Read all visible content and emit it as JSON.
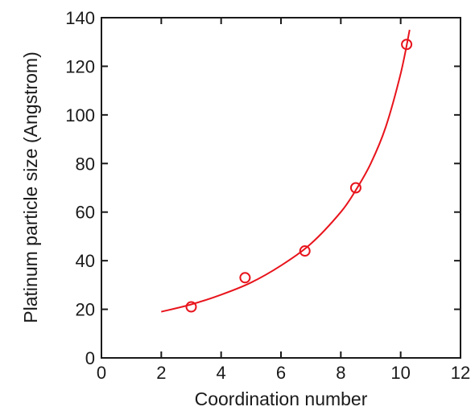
{
  "chart_data": {
    "type": "scatter",
    "xlabel": "Coordination number",
    "ylabel": "Platinum particle size (Angstrom)",
    "xlim": [
      0,
      12
    ],
    "ylim": [
      0,
      140
    ],
    "x_ticks": [
      0,
      2,
      4,
      6,
      8,
      10,
      12
    ],
    "y_ticks": [
      0,
      20,
      40,
      60,
      80,
      100,
      120,
      140
    ],
    "grid": false,
    "legend": "none",
    "marker_color": "#e8141c",
    "series": [
      {
        "marker": "open-circle",
        "points": [
          {
            "x": 3.0,
            "y": 21
          },
          {
            "x": 4.8,
            "y": 33
          },
          {
            "x": 6.8,
            "y": 44
          },
          {
            "x": 8.5,
            "y": 70
          },
          {
            "x": 10.2,
            "y": 129
          }
        ]
      }
    ],
    "fit_curve": {
      "style": "solid-line",
      "x_range": [
        2.0,
        10.3
      ],
      "points": [
        {
          "x": 2.0,
          "y": 19
        },
        {
          "x": 3.0,
          "y": 22
        },
        {
          "x": 4.0,
          "y": 26
        },
        {
          "x": 5.0,
          "y": 31
        },
        {
          "x": 6.0,
          "y": 38
        },
        {
          "x": 7.0,
          "y": 47
        },
        {
          "x": 8.0,
          "y": 60
        },
        {
          "x": 8.5,
          "y": 69
        },
        {
          "x": 9.0,
          "y": 80
        },
        {
          "x": 9.5,
          "y": 95
        },
        {
          "x": 10.0,
          "y": 117
        },
        {
          "x": 10.3,
          "y": 135
        }
      ]
    }
  }
}
